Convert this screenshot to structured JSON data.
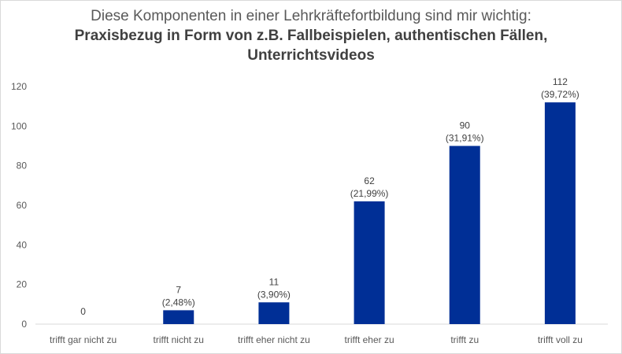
{
  "chart_data": {
    "type": "bar",
    "title": "Diese Komponenten in einer Lehrkräftefortbildung sind mir wichtig:",
    "subtitle_lines": [
      "Praxisbezug in Form von z.B. Fallbeispielen, authentischen Fällen,",
      "Unterrichtsvideos"
    ],
    "categories": [
      "trifft gar nicht zu",
      "trifft nicht zu",
      "trifft eher nicht zu",
      "trifft eher zu",
      "trifft zu",
      "trifft voll zu"
    ],
    "values": [
      0,
      7,
      11,
      62,
      90,
      112
    ],
    "percent_labels": [
      "",
      "(2,48%)",
      "(3,90%)",
      "(21,99%)",
      "(31,91%)",
      "(39,72%)"
    ],
    "xlabel": "",
    "ylabel": "",
    "ylim": [
      0,
      120
    ],
    "yticks": [
      0,
      20,
      40,
      60,
      80,
      100,
      120
    ],
    "grid": false,
    "bar_color": "#002f96"
  }
}
